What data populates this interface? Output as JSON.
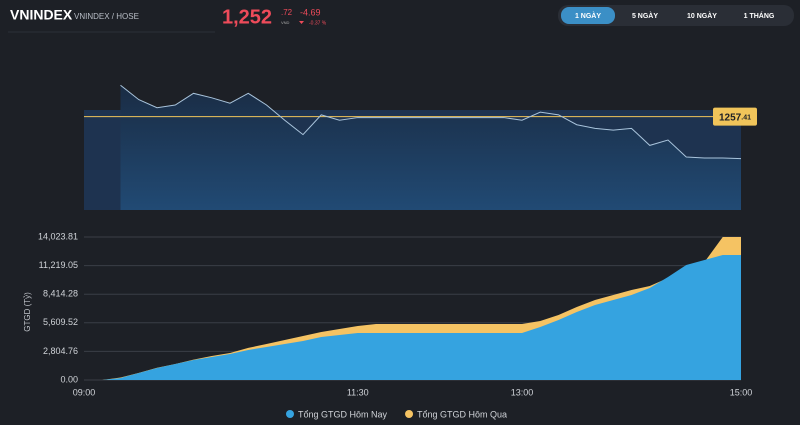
{
  "header": {
    "symbol": "VNINDEX",
    "exchange": "VNINDEX / HOSE",
    "price": "1,252",
    "price_decimal": ".72",
    "currency": "VND",
    "change": "-4.69",
    "change_pct": "-0.37 %",
    "tabs": [
      "1 NGÀY",
      "5 NGÀY",
      "10 NGÀY",
      "1 THÁNG"
    ],
    "active_tab": 0
  },
  "chart_data": [
    {
      "type": "line",
      "color": "#a9c4dc",
      "reference": {
        "value": 1257.41,
        "label_main": "1257",
        "label_decimal": ".41",
        "color": "#f0c45a"
      },
      "ylim": [
        1247,
        1262.6
      ],
      "values": [
        null,
        null,
        1260.9,
        1259.3,
        1258.4,
        1258.7,
        1260.0,
        1259.5,
        1258.9,
        1260.0,
        1258.7,
        1257.0,
        1255.4,
        1257.6,
        1257.0,
        1257.3,
        1257.3,
        1257.3,
        1257.3,
        1257.3,
        1257.3,
        1257.3,
        1257.3,
        1257.3,
        1257.0,
        1257.9,
        1257.6,
        1256.5,
        1256.1,
        1255.9,
        1256.1,
        1254.2,
        1254.8,
        1252.9,
        1252.8,
        1252.8,
        1252.72
      ]
    },
    {
      "type": "area",
      "y_label": "GTGD (Tỷ)",
      "categories": [
        "09:00",
        null,
        null,
        null,
        null,
        null,
        null,
        null,
        null,
        null,
        null,
        null,
        null,
        null,
        null,
        "11:30",
        null,
        null,
        null,
        null,
        null,
        null,
        null,
        null,
        "13:00",
        null,
        null,
        null,
        null,
        null,
        null,
        null,
        null,
        null,
        null,
        null,
        "15:00"
      ],
      "ylim": [
        0,
        14023.81
      ],
      "yticks": [
        {
          "value": 0,
          "label": "0.00"
        },
        {
          "value": 2804.76,
          "label": "2,804.76"
        },
        {
          "value": 5609.52,
          "label": "5,609.52"
        },
        {
          "value": 8414.28,
          "label": "8,414.28"
        },
        {
          "value": 11219.05,
          "label": "11,219.05"
        },
        {
          "value": 14023.81,
          "label": "14,023.81"
        }
      ],
      "grid": true,
      "series": [
        {
          "name": "Tổng GTGD Hôm Nay",
          "color": "#35a3e0",
          "values": [
            0,
            0,
            200,
            690,
            1180,
            1570,
            1960,
            2260,
            2550,
            2940,
            3240,
            3530,
            3820,
            4220,
            4410,
            4610,
            4610,
            4610,
            4610,
            4610,
            4610,
            4610,
            4610,
            4610,
            4610,
            5200,
            5880,
            6670,
            7360,
            7850,
            8340,
            9020,
            10100,
            11280,
            11770,
            12260,
            12260
          ]
        },
        {
          "name": "Tổng GTGD Hôm Qua",
          "color": "#f5c363",
          "values": [
            0,
            0,
            250,
            700,
            1200,
            1570,
            2000,
            2350,
            2650,
            3150,
            3530,
            3920,
            4310,
            4710,
            5000,
            5300,
            5490,
            5490,
            5490,
            5490,
            5490,
            5490,
            5490,
            5490,
            5490,
            5780,
            6370,
            7160,
            7850,
            8340,
            8830,
            9220,
            10000,
            10980,
            11570,
            14020,
            14020
          ]
        }
      ]
    }
  ]
}
